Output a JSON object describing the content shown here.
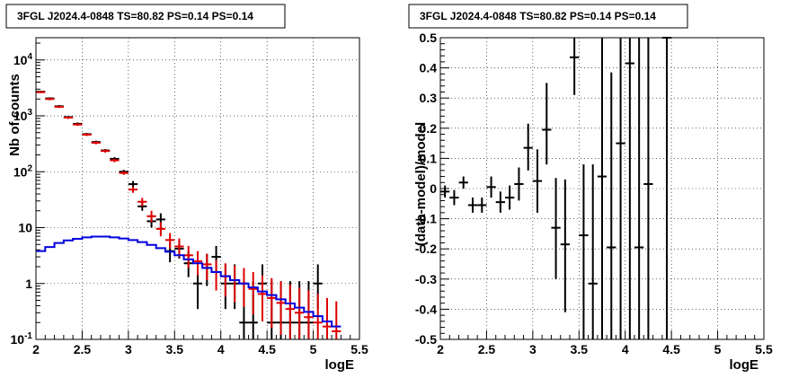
{
  "chart_data": [
    {
      "type": "line",
      "title": "3FGL J2024.4-0848 TS=80.82 PS=0.14 PS=0.14",
      "xlabel": "logE",
      "ylabel": "Nb of counts",
      "xlim": [
        2,
        5.5
      ],
      "ylim": [
        0.1,
        25000
      ],
      "yscale": "log",
      "grid": true,
      "x_ticks": [
        "2",
        "2.5",
        "3",
        "3.5",
        "4",
        "4.5",
        "5",
        "5.5"
      ],
      "y_ticks": [
        "10^-1",
        "1",
        "10",
        "10^2",
        "10^3",
        "10^4"
      ],
      "series": [
        {
          "kind": "errorbars",
          "color": "#000000",
          "x": [
            2.05,
            2.15,
            2.25,
            2.35,
            2.45,
            2.55,
            2.65,
            2.75,
            2.85,
            2.95,
            3.05,
            3.15,
            3.25,
            3.35,
            3.45,
            3.55,
            3.65,
            3.75,
            3.85,
            3.95,
            4.05,
            4.15,
            4.25,
            4.35,
            4.45,
            4.55,
            4.65,
            4.75,
            4.85,
            4.95,
            5.05
          ],
          "y": [
            2700,
            2050,
            1480,
            950,
            720,
            470,
            340,
            240,
            170,
            100,
            60,
            24,
            13,
            14,
            3.8,
            4.2,
            2.3,
            1.0,
            1.9,
            3.0,
            1.0,
            1.0,
            0.2,
            0.2,
            1.0,
            0.2,
            0.2,
            0.2,
            0.2,
            0.2,
            1.0
          ],
          "ylo": [
            2600,
            1950,
            1400,
            900,
            680,
            445,
            320,
            225,
            158,
            92,
            53,
            20,
            10,
            10,
            2.4,
            2.8,
            1.3,
            0.35,
            0.9,
            1.6,
            0.35,
            0.35,
            0.1,
            0.1,
            0.35,
            0.1,
            0.1,
            0.1,
            0.1,
            0.1,
            0.35
          ],
          "yhi": [
            2800,
            2150,
            1560,
            1000,
            760,
            495,
            360,
            255,
            182,
            108,
            68,
            29,
            17,
            18,
            5.5,
            5.7,
            3.8,
            2.2,
            3.4,
            4.7,
            2.2,
            2.2,
            1.1,
            1.1,
            2.2,
            1.1,
            1.1,
            1.1,
            1.1,
            1.1,
            2.2
          ]
        },
        {
          "kind": "errorbars",
          "color": "#dd0000",
          "x": [
            2.05,
            2.15,
            2.25,
            2.35,
            2.45,
            2.55,
            2.65,
            2.75,
            2.85,
            2.95,
            3.05,
            3.15,
            3.25,
            3.35,
            3.45,
            3.55,
            3.65,
            3.75,
            3.85,
            3.95,
            4.05,
            4.15,
            4.25,
            4.35,
            4.45,
            4.55,
            4.65,
            4.75,
            4.85,
            4.95,
            5.05,
            5.15,
            5.25
          ],
          "y": [
            2650,
            2000,
            1450,
            930,
            700,
            460,
            330,
            235,
            160,
            95,
            48,
            29,
            16,
            9.5,
            6.0,
            4.6,
            3.2,
            2.5,
            2.2,
            1.6,
            1.35,
            1.15,
            1.0,
            0.8,
            0.65,
            0.55,
            0.45,
            0.35,
            0.3,
            0.25,
            0.2,
            0.17,
            0.14
          ],
          "ylo": [
            2550,
            1900,
            1380,
            880,
            660,
            435,
            310,
            220,
            148,
            88,
            42,
            24,
            12.5,
            7.0,
            4.2,
            3.0,
            1.9,
            1.4,
            1.15,
            0.75,
            0.58,
            0.46,
            0.38,
            0.28,
            0.21,
            0.16,
            0.12,
            0.1,
            0.1,
            0.1,
            0.1,
            0.1,
            0.1
          ],
          "yhi": [
            2750,
            2100,
            1520,
            980,
            740,
            485,
            350,
            250,
            172,
            102,
            54,
            34,
            20,
            12.5,
            8.0,
            6.4,
            4.7,
            3.8,
            3.4,
            2.6,
            2.3,
            2.1,
            1.9,
            1.6,
            1.4,
            1.25,
            1.1,
            0.95,
            0.85,
            0.75,
            0.65,
            0.55,
            0.48
          ]
        },
        {
          "kind": "step",
          "color": "#0000dd",
          "x_edges": [
            2.0,
            2.1,
            2.2,
            2.3,
            2.4,
            2.5,
            2.6,
            2.7,
            2.8,
            2.9,
            3.0,
            3.1,
            3.2,
            3.3,
            3.4,
            3.5,
            3.6,
            3.7,
            3.8,
            3.9,
            4.0,
            4.1,
            4.2,
            4.3,
            4.4,
            4.5,
            4.6,
            4.7,
            4.8,
            4.9,
            5.0,
            5.1,
            5.2,
            5.3
          ],
          "y": [
            3.8,
            4.5,
            5.3,
            5.9,
            6.3,
            6.7,
            6.9,
            6.9,
            6.7,
            6.4,
            6.0,
            5.5,
            4.9,
            4.3,
            3.7,
            3.2,
            2.7,
            2.3,
            1.9,
            1.6,
            1.35,
            1.15,
            1.0,
            0.85,
            0.72,
            0.62,
            0.52,
            0.44,
            0.37,
            0.31,
            0.26,
            0.21,
            0.17
          ]
        }
      ]
    },
    {
      "type": "scatter",
      "title": "3FGL J2024.4-0848 TS=80.82 PS=0.14 PS=0.14",
      "xlabel": "logE",
      "ylabel": "(data-model)/model",
      "xlim": [
        2,
        5.5
      ],
      "ylim": [
        -0.5,
        0.5
      ],
      "grid": true,
      "x_ticks": [
        "2",
        "2.5",
        "3",
        "3.5",
        "4",
        "4.5",
        "5",
        "5.5"
      ],
      "y_ticks": [
        "-0.5",
        "-0.4",
        "-0.3",
        "-0.2",
        "-0.1",
        "0",
        "0.1",
        "0.2",
        "0.3",
        "0.4",
        "0.5"
      ],
      "series": [
        {
          "kind": "errorbars",
          "color": "#000000",
          "x": [
            2.05,
            2.15,
            2.25,
            2.35,
            2.45,
            2.55,
            2.65,
            2.75,
            2.85,
            2.95,
            3.05,
            3.15,
            3.25,
            3.35,
            3.45,
            3.55,
            3.65,
            3.75,
            3.85,
            3.95,
            4.05,
            4.15,
            4.25,
            4.45
          ],
          "y": [
            -0.01,
            -0.03,
            0.02,
            -0.055,
            -0.055,
            0.005,
            -0.045,
            -0.03,
            0.015,
            0.135,
            0.025,
            0.195,
            -0.13,
            -0.185,
            0.435,
            -0.155,
            -0.315,
            0.04,
            -0.195,
            0.15,
            0.415,
            -0.195,
            0.015,
            0.5
          ],
          "ylo": [
            -0.03,
            -0.055,
            0.0,
            -0.08,
            -0.08,
            -0.03,
            -0.08,
            -0.07,
            -0.04,
            0.06,
            -0.08,
            0.08,
            -0.3,
            -0.41,
            0.31,
            -0.5,
            -0.5,
            -0.5,
            -0.5,
            -0.5,
            -0.5,
            -0.5,
            -0.5,
            -0.5
          ],
          "yhi": [
            0.01,
            -0.005,
            0.04,
            -0.03,
            -0.03,
            0.04,
            -0.01,
            0.01,
            0.07,
            0.215,
            0.13,
            0.35,
            0.035,
            0.03,
            0.5,
            0.08,
            0.08,
            0.5,
            0.385,
            0.5,
            0.5,
            0.5,
            0.5,
            0.5
          ]
        }
      ]
    }
  ]
}
